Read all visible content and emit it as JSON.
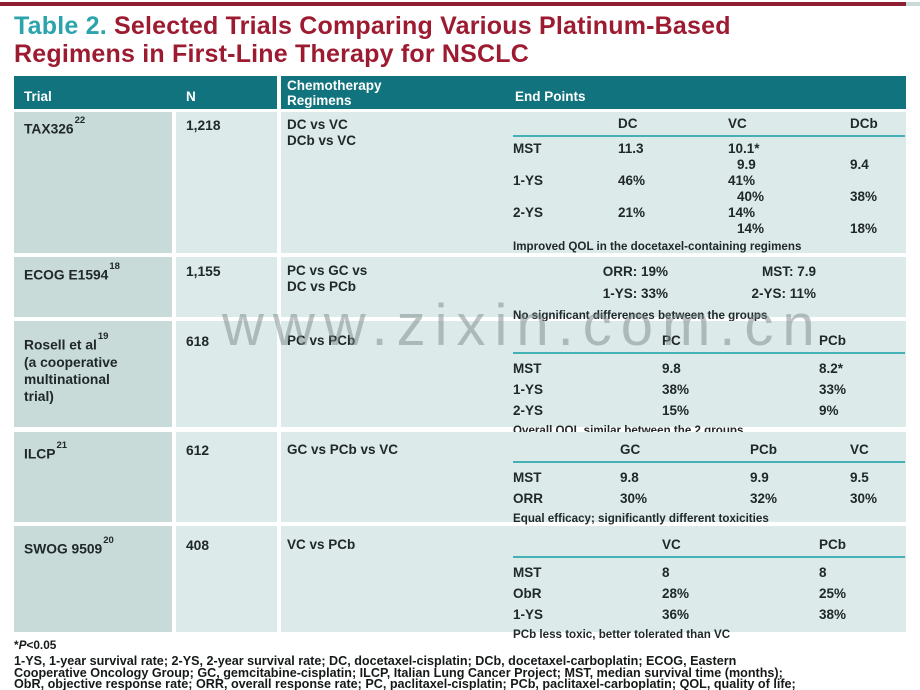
{
  "watermark": "www.zixin.com.cn",
  "colors": {
    "header_teal": "#11737d",
    "title_teal": "#2ca4ac",
    "title_maroon": "#9c1b31",
    "top_bar_maroon": "#8e1e31",
    "trial_column_bg": "#c8dbd9",
    "cell_bg": "#dcebe9",
    "rule_teal": "#43b1b6"
  },
  "title": {
    "prefix": "Table 2.",
    "line1_rest": " Selected Trials Comparing Various Platinum-Based",
    "line2": "Regimens in First-Line Therapy for NSCLC"
  },
  "header": {
    "trial": "Trial",
    "n": "N",
    "chemo_line1": "Chemotherapy",
    "chemo_line2": "Regimens",
    "endpoints": "End Points"
  },
  "rows": [
    {
      "trial": "TAX326",
      "trial_sup": "22",
      "n": "1,218",
      "chemo": [
        "DC vs VC",
        "DCb vs VC"
      ],
      "ep": {
        "cols": [
          "DC",
          "VC",
          "DCb"
        ],
        "rows": [
          {
            "label": "MST",
            "dc": "11.3",
            "vc1": "10.1*",
            "vc2": "9.9",
            "dcb2": "9.4"
          },
          {
            "label": "1-YS",
            "dc": "46%",
            "vc1": "41%",
            "vc2": "40%",
            "dcb2": "38%"
          },
          {
            "label": "2-YS",
            "dc": "21%",
            "vc1": "14%",
            "vc2": "14%",
            "dcb2": "18%"
          }
        ],
        "note": "Improved QOL in the docetaxel-containing regimens"
      }
    },
    {
      "trial": "ECOG E1594",
      "trial_sup": "18",
      "n": "1,155",
      "chemo": [
        "PC vs GC vs",
        "DC vs PCb"
      ],
      "ep": {
        "lines": [
          [
            "ORR: 19%",
            "MST: 7.9"
          ],
          [
            "1-YS: 33%",
            "2-YS: 11%"
          ]
        ],
        "note": "No significant differences between the groups"
      }
    },
    {
      "trial": "Rosell et al",
      "trial_sup": "19",
      "trial_note": [
        "(a cooperative",
        "multinational",
        "trial)"
      ],
      "n": "618",
      "chemo": [
        "PC vs PCb"
      ],
      "ep": {
        "cols": [
          "PC",
          "PCb"
        ],
        "rows": [
          {
            "label": "MST",
            "v1": "9.8",
            "v2": "8.2*"
          },
          {
            "label": "1-YS",
            "v1": "38%",
            "v2": "33%"
          },
          {
            "label": "2-YS",
            "v1": "15%",
            "v2": "9%"
          }
        ],
        "note": "Overall QOL similar between the 2 groups"
      }
    },
    {
      "trial": "ILCP",
      "trial_sup": "21",
      "n": "612",
      "chemo": [
        "GC vs PCb vs VC"
      ],
      "ep": {
        "cols": [
          "GC",
          "PCb",
          "VC"
        ],
        "rows": [
          {
            "label": "MST",
            "v1": "9.8",
            "v2": "9.9",
            "v3": "9.5"
          },
          {
            "label": "ORR",
            "v1": "30%",
            "v2": "32%",
            "v3": "30%"
          }
        ],
        "note": "Equal efficacy; significantly different toxicities"
      }
    },
    {
      "trial": "SWOG 9509",
      "trial_sup": "20",
      "n": "408",
      "chemo": [
        "VC vs PCb"
      ],
      "ep": {
        "cols": [
          "VC",
          "PCb"
        ],
        "rows": [
          {
            "label": "MST",
            "v1": "8",
            "v2": "8"
          },
          {
            "label": "ObR",
            "v1": "28%",
            "v2": "25%"
          },
          {
            "label": "1-YS",
            "v1": "36%",
            "v2": "38%"
          }
        ],
        "note": "PCb less toxic, better tolerated than VC"
      }
    }
  ],
  "footnote": {
    "star": "*",
    "p": "P",
    "rest": "<0.05",
    "abbrev": [
      "1-YS, 1-year survival rate; 2-YS, 2-year survival rate; DC, docetaxel-cisplatin; DCb, docetaxel-carboplatin; ECOG, Eastern",
      "Cooperative Oncology Group; GC, gemcitabine-cisplatin; ILCP, Italian Lung Cancer Project; MST, median survival time (months);",
      "ObR, objective response rate; ORR, overall response rate; PC, paclitaxel-cisplatin; PCb, paclitaxel-carboplatin; QOL, quality of life;"
    ]
  }
}
